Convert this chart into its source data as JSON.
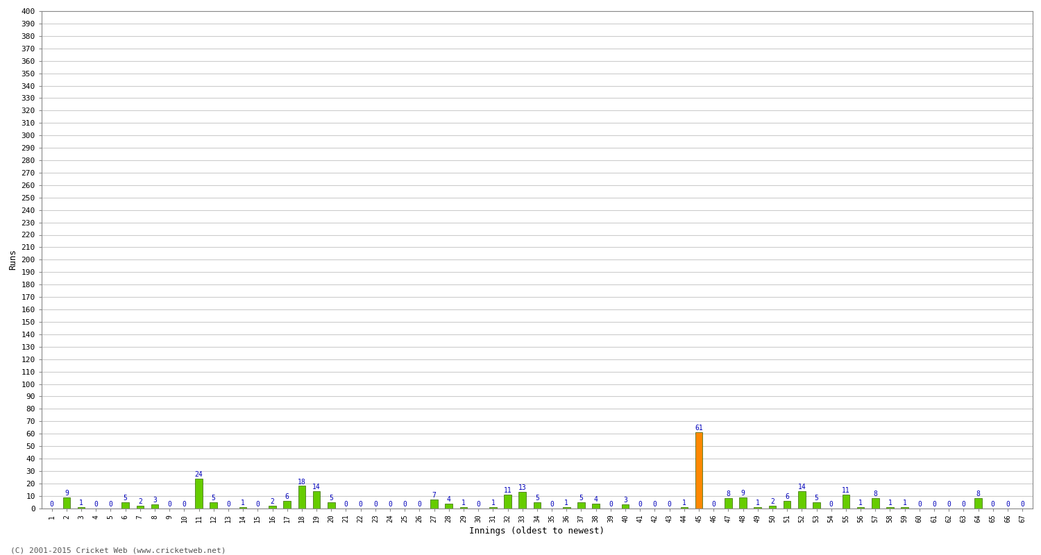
{
  "xlabel": "Innings (oldest to newest)",
  "ylabel": "Runs",
  "values": [
    0,
    9,
    1,
    0,
    0,
    5,
    2,
    3,
    0,
    0,
    24,
    5,
    0,
    1,
    0,
    2,
    6,
    18,
    14,
    5,
    0,
    0,
    0,
    0,
    0,
    0,
    7,
    4,
    1,
    0,
    1,
    11,
    13,
    5,
    0,
    1,
    5,
    4,
    0,
    3,
    0,
    0,
    0,
    1,
    61,
    0,
    8,
    9,
    1,
    2,
    6,
    14,
    5,
    0,
    11,
    1,
    8,
    1,
    1,
    0,
    0,
    0,
    0,
    8,
    0,
    0,
    0
  ],
  "labels": [
    "1",
    "2",
    "3",
    "4",
    "5",
    "6",
    "7",
    "8",
    "9",
    "10",
    "11",
    "12",
    "13",
    "14",
    "15",
    "16",
    "17",
    "18",
    "19",
    "20",
    "21",
    "22",
    "23",
    "24",
    "25",
    "26",
    "27",
    "28",
    "29",
    "30",
    "31",
    "32",
    "33",
    "34",
    "35",
    "36",
    "37",
    "38",
    "39",
    "40",
    "41",
    "42",
    "43",
    "44",
    "45",
    "46",
    "47",
    "48",
    "49",
    "50",
    "51",
    "52",
    "53",
    "54",
    "55",
    "56",
    "57",
    "58",
    "59",
    "60",
    "61",
    "62",
    "63",
    "64",
    "65",
    "66",
    "67"
  ],
  "highlight_index": 44,
  "bar_color": "#66cc00",
  "highlight_color": "#ff8800",
  "bar_edge_color": "#336600",
  "ylim": [
    0,
    400
  ],
  "yticks": [
    0,
    10,
    20,
    30,
    40,
    50,
    60,
    70,
    80,
    90,
    100,
    110,
    120,
    130,
    140,
    150,
    160,
    170,
    180,
    190,
    200,
    210,
    220,
    230,
    240,
    250,
    260,
    270,
    280,
    290,
    300,
    310,
    320,
    330,
    340,
    350,
    360,
    370,
    380,
    390,
    400
  ],
  "background_color": "#ffffff",
  "plot_bg_color": "#ffffff",
  "grid_color": "#cccccc",
  "annotation_color": "#0000bb",
  "tick_label_color": "#000000",
  "footer": "(C) 2001-2015 Cricket Web (www.cricketweb.net)",
  "bar_width": 0.5
}
